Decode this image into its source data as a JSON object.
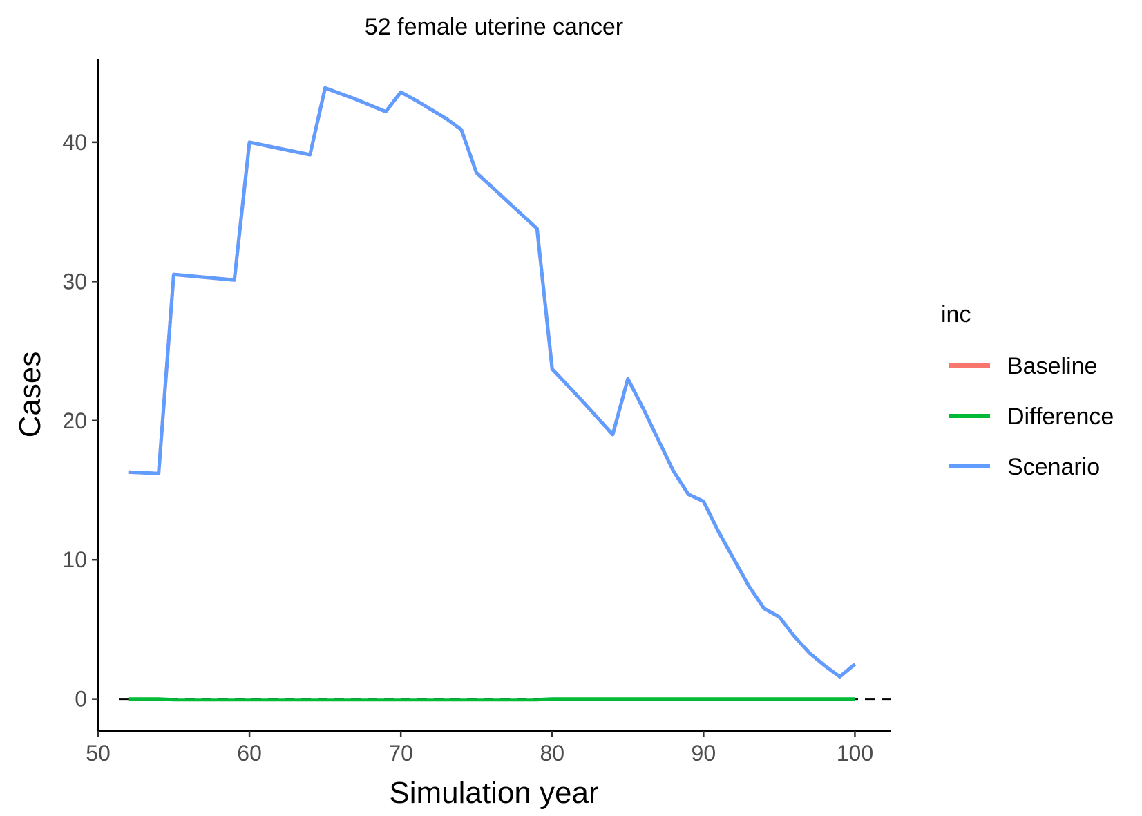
{
  "chart_data": {
    "type": "line",
    "title": "52 female uterine cancer",
    "xlabel": "Simulation year",
    "ylabel": "Cases",
    "xlim": [
      50,
      102.4
    ],
    "ylim": [
      -2.3,
      46
    ],
    "x_ticks": [
      50,
      60,
      70,
      80,
      90,
      100
    ],
    "y_ticks": [
      0,
      10,
      20,
      30,
      40
    ],
    "reference_line": {
      "y": 0,
      "style": "dashed"
    },
    "legend": {
      "title": "inc",
      "position": "right"
    },
    "x": [
      52,
      54,
      55,
      59,
      60,
      64,
      65,
      67,
      69,
      70,
      71,
      73,
      74,
      75,
      76,
      79,
      80,
      82,
      84,
      85,
      86,
      88,
      89,
      90,
      91,
      93,
      94,
      95,
      96,
      97,
      98,
      99,
      100
    ],
    "series": [
      {
        "name": "Baseline",
        "color": "#F8766D",
        "values": [
          16.3,
          16.2,
          30.5,
          30.1,
          40.0,
          39.1,
          43.9,
          43.1,
          42.2,
          43.6,
          43.0,
          41.7,
          40.9,
          37.8,
          36.8,
          33.8,
          23.7,
          21.4,
          19.0,
          23.0,
          20.9,
          16.4,
          14.7,
          14.2,
          12.0,
          8.1,
          6.5,
          5.9,
          4.5,
          3.3,
          2.4,
          1.6,
          2.5
        ]
      },
      {
        "name": "Difference",
        "color": "#00BA38",
        "values": [
          0,
          0,
          -0.05,
          -0.05,
          -0.05,
          -0.05,
          -0.05,
          -0.05,
          -0.05,
          -0.05,
          -0.05,
          -0.05,
          -0.05,
          -0.05,
          -0.05,
          -0.05,
          0,
          0,
          0,
          0,
          0,
          0,
          0,
          0,
          0,
          0,
          0,
          0,
          0,
          0,
          0,
          0,
          0
        ]
      },
      {
        "name": "Scenario",
        "color": "#619CFF",
        "values": [
          16.3,
          16.2,
          30.5,
          30.1,
          40.0,
          39.1,
          43.9,
          43.1,
          42.2,
          43.6,
          43.0,
          41.7,
          40.9,
          37.8,
          36.8,
          33.8,
          23.7,
          21.4,
          19.0,
          23.0,
          20.9,
          16.4,
          14.7,
          14.2,
          12.0,
          8.1,
          6.5,
          5.9,
          4.5,
          3.3,
          2.4,
          1.6,
          2.5
        ]
      }
    ]
  }
}
